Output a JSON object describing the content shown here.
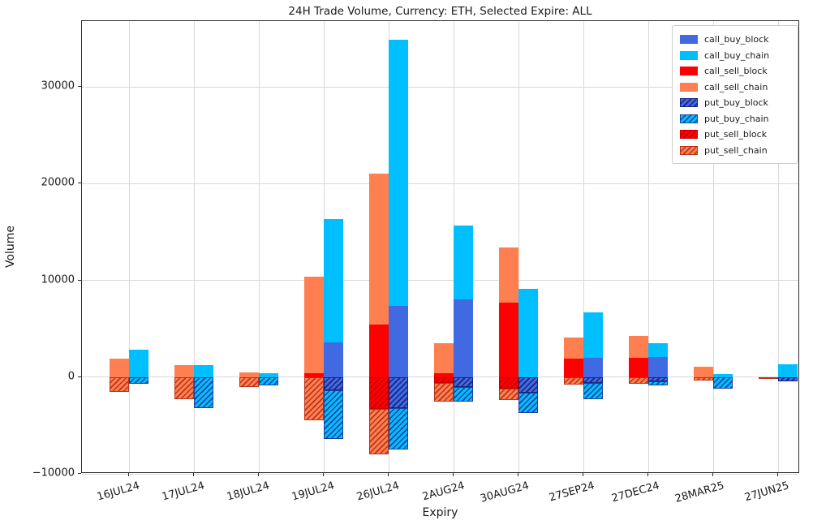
{
  "title": "24H Trade Volume, Currency: ETH, Selected Expire: ALL",
  "chart_data": {
    "type": "bar",
    "stacked": true,
    "grouped_sides": [
      "sell",
      "buy"
    ],
    "title": "24H Trade Volume, Currency: ETH, Selected Expire: ALL",
    "xlabel": "Expiry",
    "ylabel": "Volume",
    "ylim": [
      -10000,
      36800
    ],
    "yticks": [
      -10000,
      0,
      10000,
      20000,
      30000
    ],
    "grid": true,
    "legend_position": "upper right",
    "categories": [
      "16JUL24",
      "17JUL24",
      "18JUL24",
      "19JUL24",
      "26JUL24",
      "2AUG24",
      "30AUG24",
      "27SEP24",
      "27DEC24",
      "28MAR25",
      "27JUN25"
    ],
    "series": [
      {
        "name": "call_buy_block",
        "color": "#4169E1",
        "hatch": false,
        "hatch_color": "#16247e",
        "values": [
          0,
          0,
          0,
          3600,
          7400,
          8000,
          0,
          2000,
          2100,
          0,
          0
        ]
      },
      {
        "name": "call_buy_chain",
        "color": "#00BFFF",
        "hatch": false,
        "hatch_color": "#1b3f9e",
        "values": [
          2800,
          1200,
          400,
          12700,
          27500,
          7700,
          9100,
          4700,
          1400,
          300,
          1300
        ]
      },
      {
        "name": "call_sell_block",
        "color": "#FF0000",
        "hatch": false,
        "hatch_color": "#b40000",
        "values": [
          0,
          0,
          0,
          400,
          5400,
          400,
          7700,
          1900,
          2000,
          0,
          0
        ]
      },
      {
        "name": "call_sell_chain",
        "color": "#FF7F50",
        "hatch": false,
        "hatch_color": "#b83418",
        "values": [
          1900,
          1200,
          500,
          10000,
          15600,
          3100,
          5700,
          2200,
          2300,
          1100,
          0
        ]
      },
      {
        "name": "put_buy_block",
        "color": "#4169E1",
        "hatch": true,
        "hatch_color": "#16247e",
        "values": [
          0,
          0,
          0,
          -1400,
          -3200,
          -1000,
          -1600,
          -600,
          -400,
          0,
          -400
        ]
      },
      {
        "name": "put_buy_chain",
        "color": "#00BFFF",
        "hatch": true,
        "hatch_color": "#1b3f9e",
        "values": [
          -700,
          -3200,
          -900,
          -5000,
          -4300,
          -1500,
          -2100,
          -1700,
          -500,
          -1200,
          0
        ]
      },
      {
        "name": "put_sell_block",
        "color": "#FF0000",
        "hatch": true,
        "hatch_color": "#c40000",
        "values": [
          0,
          0,
          0,
          0,
          -3300,
          -600,
          -1200,
          0,
          0,
          0,
          0
        ]
      },
      {
        "name": "put_sell_chain",
        "color": "#FF7F50",
        "hatch": true,
        "hatch_color": "#b83418",
        "values": [
          -1500,
          -2300,
          -1000,
          -4500,
          -4700,
          -1900,
          -1200,
          -800,
          -700,
          -350,
          -150
        ]
      }
    ]
  }
}
